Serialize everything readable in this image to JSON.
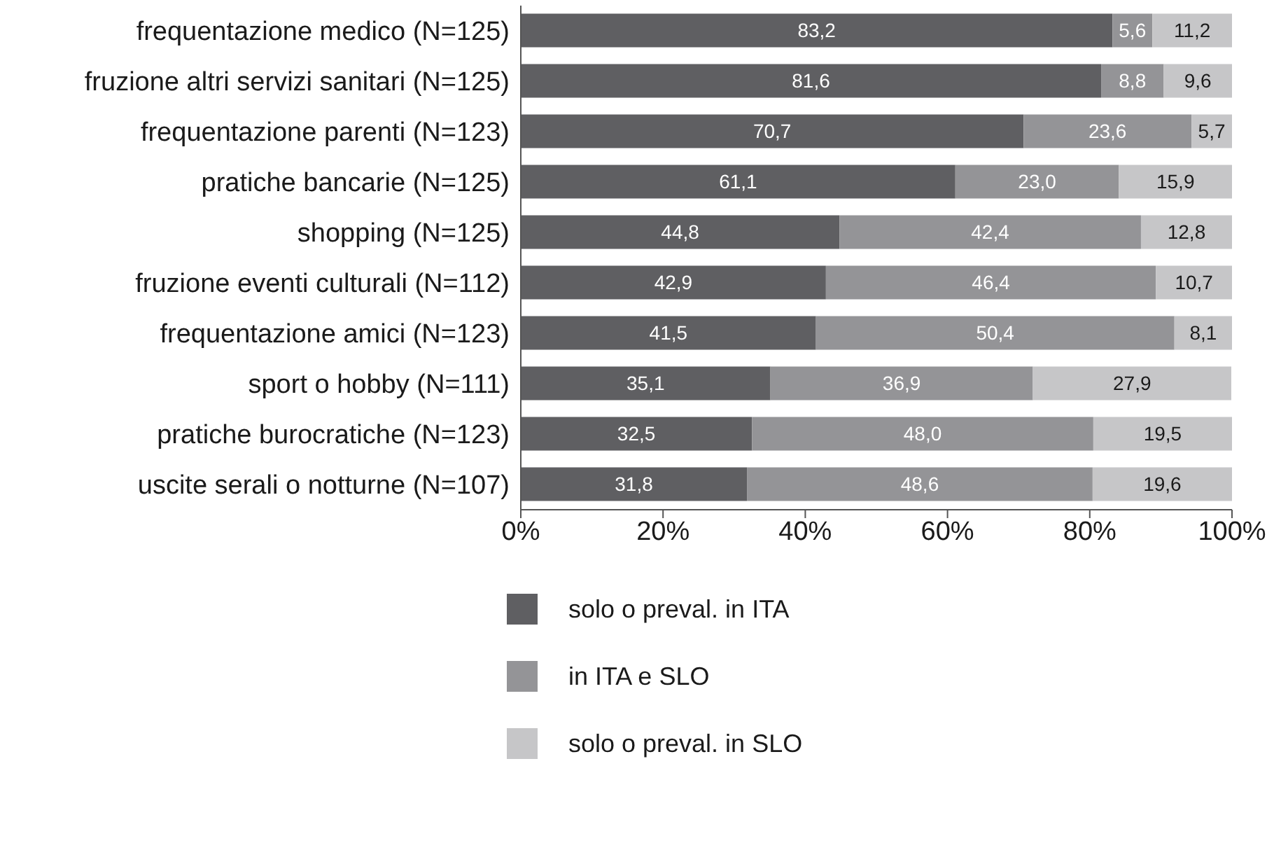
{
  "chart_data": {
    "type": "bar",
    "orientation": "horizontal",
    "stacked": true,
    "legend": "bottom",
    "categories": [
      "frequentazione medico (N=125)",
      "fruzione altri servizi sanitari (N=125)",
      "frequentazione parenti (N=123)",
      "pratiche bancarie (N=125)",
      "shopping (N=125)",
      "fruzione eventi culturali (N=112)",
      "frequentazione amici (N=123)",
      "sport o hobby (N=111)",
      "pratiche burocratiche (N=123)",
      "uscite serali o notturne (N=107)"
    ],
    "xlim": [
      0,
      100
    ],
    "xticks": [
      {
        "value": 0,
        "label": "0%"
      },
      {
        "value": 20,
        "label": "20%"
      },
      {
        "value": 40,
        "label": "40%"
      },
      {
        "value": 60,
        "label": "60%"
      },
      {
        "value": 80,
        "label": "80%"
      },
      {
        "value": 100,
        "label": "100%"
      }
    ],
    "series": [
      {
        "name": "solo o preval. in ITA",
        "color": "#5f5f62",
        "values": [
          83.2,
          81.6,
          70.7,
          61.1,
          44.8,
          42.9,
          41.5,
          35.1,
          32.5,
          31.8
        ],
        "value_labels": [
          "83,2",
          "81,6",
          "70,7",
          "61,1",
          "44,8",
          "42,9",
          "41,5",
          "35,1",
          "32,5",
          "31,8"
        ]
      },
      {
        "name": "in ITA e SLO",
        "color": "#949497",
        "values": [
          5.6,
          8.8,
          23.6,
          23.0,
          42.4,
          46.4,
          50.4,
          36.9,
          48.0,
          48.6
        ],
        "value_labels": [
          "5,6",
          "8,8",
          "23,6",
          "23,0",
          "42,4",
          "46,4",
          "50,4",
          "36,9",
          "48,0",
          "48,6"
        ]
      },
      {
        "name": "solo o preval. in SLO",
        "color": "#c6c6c8",
        "values": [
          11.2,
          9.6,
          5.7,
          15.9,
          12.8,
          10.7,
          8.1,
          27.9,
          19.5,
          19.6
        ],
        "value_labels": [
          "11,2",
          "9,6",
          "5,7",
          "15,9",
          "12,8",
          "10,7",
          "8,1",
          "27,9",
          "19,5",
          "19,6"
        ]
      }
    ]
  }
}
